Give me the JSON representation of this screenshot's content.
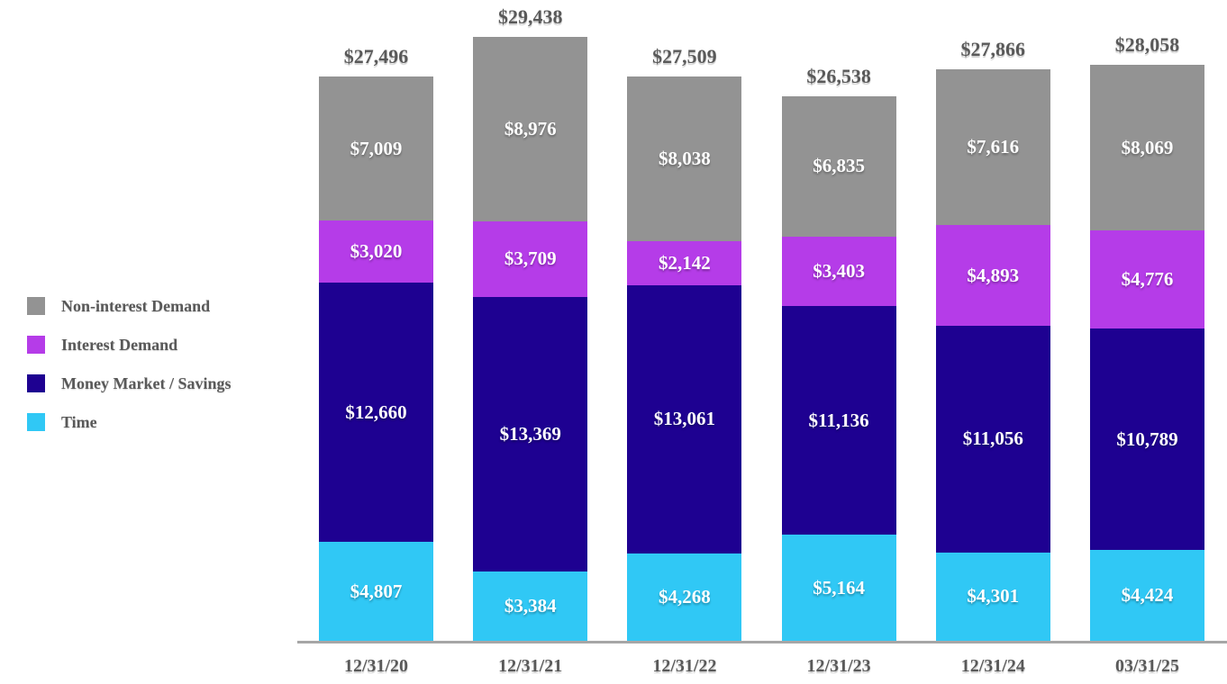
{
  "chart_data": {
    "type": "bar",
    "stacked": true,
    "title": "",
    "xlabel": "",
    "ylabel": "",
    "grid": false,
    "legend_position": "left",
    "value_prefix": "$",
    "ylim": [
      0,
      29438
    ],
    "categories": [
      "12/31/20",
      "12/31/21",
      "12/31/22",
      "12/31/23",
      "12/31/24",
      "03/31/25"
    ],
    "series": [
      {
        "name": "Non-interest Demand",
        "color": "#939393",
        "values": [
          7009,
          8976,
          8038,
          6835,
          7616,
          8069
        ]
      },
      {
        "name": "Interest Demand",
        "color": "#b53ce8",
        "values": [
          3020,
          3709,
          2142,
          3403,
          4893,
          4776
        ]
      },
      {
        "name": "Money Market / Savings",
        "color": "#1e0191",
        "values": [
          12660,
          13369,
          13061,
          11136,
          11056,
          10789
        ]
      },
      {
        "name": "Time",
        "color": "#30c8f5",
        "values": [
          4807,
          3384,
          4268,
          5164,
          4301,
          4424
        ]
      }
    ],
    "totals": [
      27496,
      29438,
      27509,
      26538,
      27866,
      28058
    ],
    "total_labels": [
      "$27,496",
      "$29,438",
      "$27,509",
      "$26,538",
      "$27,866",
      "$28,058"
    ],
    "colors": {
      "inside_label_text": "#ffffff",
      "outside_label_text": "#595959",
      "axis_line": "#a6a6a6",
      "background": "#ffffff"
    }
  }
}
